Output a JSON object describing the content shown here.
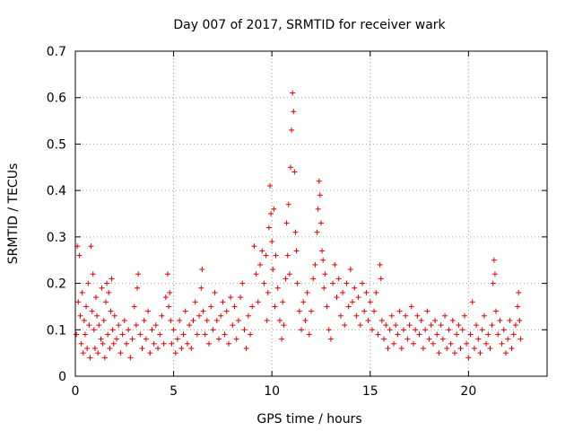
{
  "chart_data": {
    "type": "scatter",
    "title": "Day 007 of 2017, SRMTID for receiver wark",
    "xlabel": "GPS time / hours",
    "ylabel": "SRMTID / TECUs",
    "xlim": [
      0,
      24
    ],
    "ylim": [
      0,
      0.7
    ],
    "x_ticks": [
      0,
      5,
      10,
      15,
      20
    ],
    "y_ticks": [
      0,
      0.1,
      0.2,
      0.3,
      0.4,
      0.5,
      0.6,
      0.7
    ],
    "x_tick_labels": [
      "0",
      "5",
      "10",
      "15",
      "20"
    ],
    "y_tick_labels": [
      "0",
      "0.1",
      "0.2",
      "0.3",
      "0.4",
      "0.5",
      "0.6",
      "0.7"
    ],
    "grid": true,
    "marker": "+",
    "colors": {
      "series": "#e00000",
      "grid": "#a0a0a0",
      "axes": "#000000"
    },
    "series": [
      {
        "name": "SRMTID",
        "points": [
          [
            0.05,
            0.09
          ],
          [
            0.1,
            0.28
          ],
          [
            0.15,
            0.16
          ],
          [
            0.2,
            0.26
          ],
          [
            0.25,
            0.13
          ],
          [
            0.3,
            0.07
          ],
          [
            0.35,
            0.18
          ],
          [
            0.4,
            0.05
          ],
          [
            0.45,
            0.12
          ],
          [
            0.5,
            0.09
          ],
          [
            0.55,
            0.15
          ],
          [
            0.6,
            0.06
          ],
          [
            0.65,
            0.2
          ],
          [
            0.7,
            0.11
          ],
          [
            0.75,
            0.04
          ],
          [
            0.8,
            0.28
          ],
          [
            0.85,
            0.14
          ],
          [
            0.9,
            0.22
          ],
          [
            0.95,
            0.1
          ],
          [
            1.0,
            0.06
          ],
          [
            1.05,
            0.17
          ],
          [
            1.1,
            0.13
          ],
          [
            1.15,
            0.05
          ],
          [
            1.2,
            0.11
          ],
          [
            1.3,
            0.08
          ],
          [
            1.35,
            0.19
          ],
          [
            1.4,
            0.07
          ],
          [
            1.45,
            0.12
          ],
          [
            1.5,
            0.04
          ],
          [
            1.55,
            0.16
          ],
          [
            1.6,
            0.2
          ],
          [
            1.65,
            0.09
          ],
          [
            1.7,
            0.18
          ],
          [
            1.75,
            0.06
          ],
          [
            1.8,
            0.14
          ],
          [
            1.85,
            0.21
          ],
          [
            1.9,
            0.1
          ],
          [
            1.95,
            0.07
          ],
          [
            2.0,
            0.13
          ],
          [
            2.1,
            0.08
          ],
          [
            2.2,
            0.11
          ],
          [
            2.3,
            0.05
          ],
          [
            2.4,
            0.09
          ],
          [
            2.5,
            0.12
          ],
          [
            2.6,
            0.07
          ],
          [
            2.7,
            0.1
          ],
          [
            2.8,
            0.04
          ],
          [
            2.9,
            0.08
          ],
          [
            3.0,
            0.15
          ],
          [
            3.1,
            0.11
          ],
          [
            3.15,
            0.19
          ],
          [
            3.2,
            0.22
          ],
          [
            3.3,
            0.09
          ],
          [
            3.4,
            0.06
          ],
          [
            3.5,
            0.12
          ],
          [
            3.6,
            0.08
          ],
          [
            3.7,
            0.14
          ],
          [
            3.8,
            0.05
          ],
          [
            3.9,
            0.1
          ],
          [
            4.0,
            0.07
          ],
          [
            4.1,
            0.11
          ],
          [
            4.2,
            0.06
          ],
          [
            4.3,
            0.09
          ],
          [
            4.4,
            0.13
          ],
          [
            4.5,
            0.07
          ],
          [
            4.6,
            0.17
          ],
          [
            4.7,
            0.22
          ],
          [
            4.75,
            0.15
          ],
          [
            4.8,
            0.18
          ],
          [
            4.85,
            0.12
          ],
          [
            4.9,
            0.07
          ],
          [
            5.0,
            0.1
          ],
          [
            5.1,
            0.05
          ],
          [
            5.2,
            0.08
          ],
          [
            5.3,
            0.12
          ],
          [
            5.4,
            0.06
          ],
          [
            5.5,
            0.09
          ],
          [
            5.6,
            0.14
          ],
          [
            5.7,
            0.07
          ],
          [
            5.8,
            0.11
          ],
          [
            5.9,
            0.06
          ],
          [
            6.0,
            0.12
          ],
          [
            6.1,
            0.16
          ],
          [
            6.2,
            0.09
          ],
          [
            6.3,
            0.13
          ],
          [
            6.4,
            0.19
          ],
          [
            6.45,
            0.23
          ],
          [
            6.5,
            0.14
          ],
          [
            6.6,
            0.09
          ],
          [
            6.7,
            0.12
          ],
          [
            6.8,
            0.07
          ],
          [
            6.9,
            0.15
          ],
          [
            7.0,
            0.1
          ],
          [
            7.1,
            0.18
          ],
          [
            7.2,
            0.12
          ],
          [
            7.3,
            0.08
          ],
          [
            7.4,
            0.13
          ],
          [
            7.5,
            0.16
          ],
          [
            7.6,
            0.09
          ],
          [
            7.7,
            0.14
          ],
          [
            7.8,
            0.07
          ],
          [
            7.9,
            0.17
          ],
          [
            8.0,
            0.11
          ],
          [
            8.1,
            0.15
          ],
          [
            8.2,
            0.08
          ],
          [
            8.3,
            0.12
          ],
          [
            8.4,
            0.17
          ],
          [
            8.5,
            0.2
          ],
          [
            8.6,
            0.1
          ],
          [
            8.7,
            0.06
          ],
          [
            8.8,
            0.13
          ],
          [
            8.9,
            0.09
          ],
          [
            9.0,
            0.15
          ],
          [
            9.1,
            0.28
          ],
          [
            9.2,
            0.22
          ],
          [
            9.3,
            0.16
          ],
          [
            9.4,
            0.24
          ],
          [
            9.5,
            0.27
          ],
          [
            9.6,
            0.2
          ],
          [
            9.7,
            0.26
          ],
          [
            9.75,
            0.12
          ],
          [
            9.8,
            0.18
          ],
          [
            9.85,
            0.32
          ],
          [
            9.9,
            0.41
          ],
          [
            9.95,
            0.35
          ],
          [
            10.0,
            0.29
          ],
          [
            10.05,
            0.23
          ],
          [
            10.1,
            0.36
          ],
          [
            10.15,
            0.15
          ],
          [
            10.2,
            0.26
          ],
          [
            10.3,
            0.19
          ],
          [
            10.4,
            0.12
          ],
          [
            10.5,
            0.08
          ],
          [
            10.55,
            0.16
          ],
          [
            10.6,
            0.11
          ],
          [
            10.7,
            0.21
          ],
          [
            10.75,
            0.33
          ],
          [
            10.8,
            0.26
          ],
          [
            10.85,
            0.37
          ],
          [
            10.9,
            0.22
          ],
          [
            10.95,
            0.45
          ],
          [
            11.0,
            0.53
          ],
          [
            11.05,
            0.61
          ],
          [
            11.1,
            0.57
          ],
          [
            11.15,
            0.44
          ],
          [
            11.2,
            0.31
          ],
          [
            11.25,
            0.27
          ],
          [
            11.3,
            0.2
          ],
          [
            11.4,
            0.14
          ],
          [
            11.5,
            0.1
          ],
          [
            11.6,
            0.16
          ],
          [
            11.7,
            0.12
          ],
          [
            11.8,
            0.18
          ],
          [
            11.9,
            0.09
          ],
          [
            12.0,
            0.14
          ],
          [
            12.1,
            0.21
          ],
          [
            12.2,
            0.24
          ],
          [
            12.3,
            0.31
          ],
          [
            12.35,
            0.36
          ],
          [
            12.4,
            0.42
          ],
          [
            12.45,
            0.39
          ],
          [
            12.5,
            0.33
          ],
          [
            12.55,
            0.27
          ],
          [
            12.6,
            0.25
          ],
          [
            12.65,
            0.19
          ],
          [
            12.7,
            0.22
          ],
          [
            12.8,
            0.15
          ],
          [
            12.9,
            0.1
          ],
          [
            13.0,
            0.08
          ],
          [
            13.1,
            0.2
          ],
          [
            13.2,
            0.24
          ],
          [
            13.3,
            0.17
          ],
          [
            13.4,
            0.21
          ],
          [
            13.5,
            0.13
          ],
          [
            13.6,
            0.18
          ],
          [
            13.7,
            0.11
          ],
          [
            13.8,
            0.2
          ],
          [
            13.9,
            0.15
          ],
          [
            14.0,
            0.23
          ],
          [
            14.1,
            0.16
          ],
          [
            14.2,
            0.19
          ],
          [
            14.3,
            0.13
          ],
          [
            14.4,
            0.17
          ],
          [
            14.5,
            0.11
          ],
          [
            14.6,
            0.2
          ],
          [
            14.7,
            0.14
          ],
          [
            14.8,
            0.18
          ],
          [
            14.9,
            0.12
          ],
          [
            15.0,
            0.16
          ],
          [
            15.1,
            0.1
          ],
          [
            15.2,
            0.14
          ],
          [
            15.3,
            0.18
          ],
          [
            15.4,
            0.09
          ],
          [
            15.5,
            0.24
          ],
          [
            15.55,
            0.21
          ],
          [
            15.6,
            0.12
          ],
          [
            15.7,
            0.08
          ],
          [
            15.8,
            0.11
          ],
          [
            15.9,
            0.06
          ],
          [
            16.0,
            0.1
          ],
          [
            16.1,
            0.13
          ],
          [
            16.2,
            0.07
          ],
          [
            16.3,
            0.11
          ],
          [
            16.4,
            0.09
          ],
          [
            16.5,
            0.14
          ],
          [
            16.6,
            0.06
          ],
          [
            16.7,
            0.1
          ],
          [
            16.8,
            0.13
          ],
          [
            16.9,
            0.08
          ],
          [
            17.0,
            0.11
          ],
          [
            17.1,
            0.15
          ],
          [
            17.2,
            0.07
          ],
          [
            17.3,
            0.1
          ],
          [
            17.4,
            0.13
          ],
          [
            17.5,
            0.09
          ],
          [
            17.6,
            0.12
          ],
          [
            17.7,
            0.06
          ],
          [
            17.8,
            0.1
          ],
          [
            17.9,
            0.14
          ],
          [
            18.0,
            0.08
          ],
          [
            18.1,
            0.11
          ],
          [
            18.2,
            0.07
          ],
          [
            18.3,
            0.12
          ],
          [
            18.4,
            0.09
          ],
          [
            18.5,
            0.05
          ],
          [
            18.6,
            0.11
          ],
          [
            18.7,
            0.08
          ],
          [
            18.8,
            0.13
          ],
          [
            18.9,
            0.06
          ],
          [
            19.0,
            0.1
          ],
          [
            19.1,
            0.07
          ],
          [
            19.2,
            0.12
          ],
          [
            19.3,
            0.05
          ],
          [
            19.4,
            0.09
          ],
          [
            19.5,
            0.11
          ],
          [
            19.6,
            0.06
          ],
          [
            19.7,
            0.1
          ],
          [
            19.8,
            0.13
          ],
          [
            19.9,
            0.07
          ],
          [
            20.0,
            0.04
          ],
          [
            20.1,
            0.09
          ],
          [
            20.2,
            0.16
          ],
          [
            20.3,
            0.06
          ],
          [
            20.4,
            0.11
          ],
          [
            20.5,
            0.08
          ],
          [
            20.6,
            0.05
          ],
          [
            20.7,
            0.1
          ],
          [
            20.8,
            0.13
          ],
          [
            20.9,
            0.07
          ],
          [
            21.0,
            0.09
          ],
          [
            21.1,
            0.06
          ],
          [
            21.2,
            0.11
          ],
          [
            21.25,
            0.2
          ],
          [
            21.3,
            0.25
          ],
          [
            21.35,
            0.22
          ],
          [
            21.4,
            0.14
          ],
          [
            21.5,
            0.09
          ],
          [
            21.6,
            0.12
          ],
          [
            21.7,
            0.07
          ],
          [
            21.8,
            0.1
          ],
          [
            21.9,
            0.05
          ],
          [
            22.0,
            0.08
          ],
          [
            22.1,
            0.12
          ],
          [
            22.2,
            0.06
          ],
          [
            22.3,
            0.09
          ],
          [
            22.4,
            0.11
          ],
          [
            22.5,
            0.15
          ],
          [
            22.55,
            0.18
          ],
          [
            22.6,
            0.12
          ],
          [
            22.65,
            0.08
          ]
        ]
      }
    ]
  }
}
